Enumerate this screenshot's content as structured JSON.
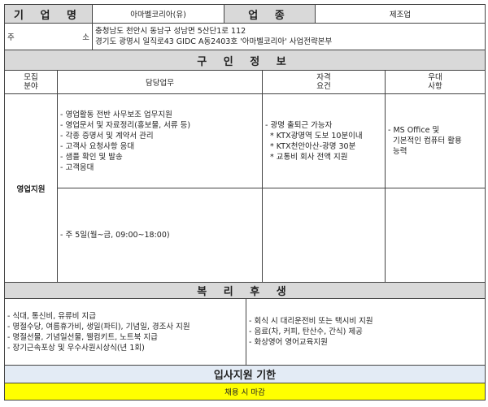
{
  "company": {
    "name_label": "기 업 명",
    "name": "아마벨코리아(유)",
    "industry_label": "업 종",
    "industry": "제조업",
    "address_label_left": "주",
    "address_label_right": "소",
    "address_lines": [
      "충청남도 천안시 동남구 성남면 5산단1로 112",
      "경기도 광명시 일직로43 GIDC A동2403호 '아마벨코리아' 사업전략본부"
    ]
  },
  "job_info": {
    "title": "구 인 정 보",
    "headers": {
      "field": [
        "모집",
        "분야"
      ],
      "duties": "담당업무",
      "requirements": [
        "자격",
        "요건"
      ],
      "preferred": [
        "우대",
        "사항"
      ]
    },
    "field": "영업지원",
    "duties": [
      "- 영업활동 전반 사무보조 업무지원",
      "- 영업문서 및 자료정리(홍보물, 서류 등)",
      "- 각종 증명서 및 계약서 관리",
      "- 고객사 요청사항 응대",
      "- 샘플 확인 및 발송",
      "- 고객응대"
    ],
    "requirements": [
      "- 광명 출퇴근 가능자",
      "  * KTX광명역 도보 10분이내",
      "  * KTX천안아산-광명 30분",
      "  * 교통비 회사 전액 지원"
    ],
    "preferred": [
      "- MS Office 및",
      "  기본적인 컴퓨터 활용",
      "  능력"
    ],
    "hours": "- 주 5일(월~금, 09:00~18:00)"
  },
  "benefits": {
    "title": "복 리 후 생",
    "left": [
      "- 식대, 통신비, 유류비 지급",
      "- 명절수당, 여름휴가비, 생일(파티), 기념일, 경조사 지원",
      "- 명절선물, 기념일선물, 웰컴키트, 노트북 지급",
      "- 장기근속포상 및 우수사원시상식(년 1회)"
    ],
    "right": [
      "- 회식 시 대리운전비 또는 택시비 지원",
      "- 음료(차, 커피, 탄산수, 간식) 제공",
      "- 화상영어 영어교육지원"
    ]
  },
  "deadline": {
    "title": "입사지원 기한",
    "value": "채용 시 마감"
  },
  "colors": {
    "header_gray": "#d9d9d9",
    "deadline_header": "#e3ebf5",
    "deadline_value": "#ffff00"
  }
}
